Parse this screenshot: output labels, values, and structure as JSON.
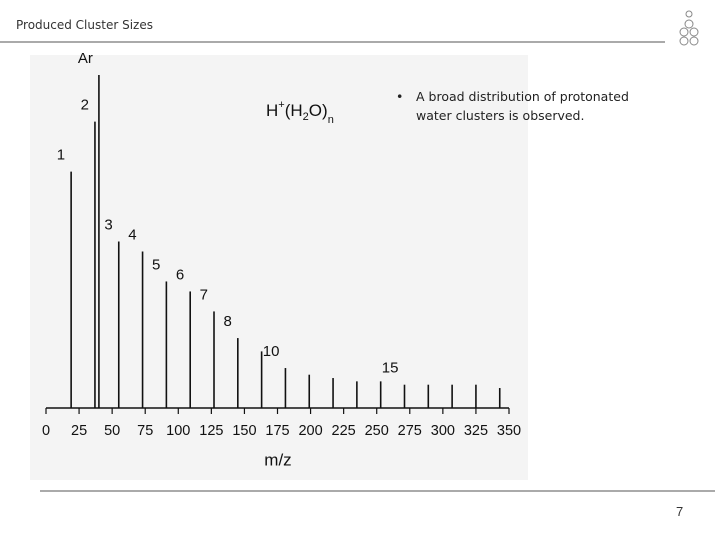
{
  "header": {
    "title": "Produced Cluster Sizes"
  },
  "bullets": [
    "A broad distribution of protonated water clusters is observed."
  ],
  "page_number": "7",
  "chart_data": {
    "type": "stem",
    "formula": [
      "H",
      "+",
      "(H",
      "2",
      "O)",
      "n"
    ],
    "x_label": "m/z",
    "color": "#111111",
    "x": [
      19,
      37,
      40,
      55,
      73,
      91,
      109,
      127,
      145,
      163,
      181,
      199,
      217,
      235,
      253,
      271,
      289,
      307,
      325,
      343
    ],
    "values": [
      71,
      86,
      100,
      50,
      47,
      38,
      35,
      29,
      21,
      17,
      12,
      10,
      9,
      8,
      8,
      7,
      7,
      7,
      7,
      6
    ],
    "labels": [
      "1",
      "2",
      "Ar",
      "3",
      "4",
      "5",
      "6",
      "7",
      "8",
      null,
      "10",
      null,
      null,
      null,
      null,
      "15",
      null,
      null,
      null,
      null
    ],
    "xlim": [
      0,
      350
    ],
    "ylim": [
      0,
      100
    ],
    "xticks": [
      0,
      25,
      50,
      75,
      100,
      125,
      150,
      175,
      200,
      225,
      250,
      275,
      300,
      325,
      350
    ]
  }
}
